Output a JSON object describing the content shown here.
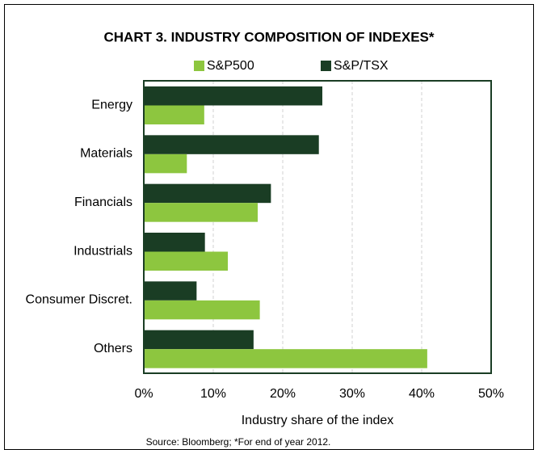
{
  "chart_data": {
    "type": "barh",
    "title": "CHART 3. INDUSTRY COMPOSITION OF INDEXES*",
    "categories": [
      "Energy",
      "Materials",
      "Financials",
      "Industrials",
      "Consumer Discret.",
      "Others"
    ],
    "series": [
      {
        "name": "S&P500",
        "color": "#8dc63f",
        "values": [
          8.7,
          6.2,
          16.4,
          12.1,
          16.7,
          40.8
        ]
      },
      {
        "name": "S&P/TSX",
        "color": "#1a3d24",
        "values": [
          25.7,
          25.2,
          18.3,
          8.8,
          7.6,
          15.8
        ]
      }
    ],
    "xlabel": "Industry share of the index",
    "xlim": [
      0,
      50
    ],
    "xticks": [
      {
        "value": 0,
        "label": "0%"
      },
      {
        "value": 10,
        "label": "10%"
      },
      {
        "value": 20,
        "label": "20%"
      },
      {
        "value": 30,
        "label": "30%"
      },
      {
        "value": 40,
        "label": "40%"
      },
      {
        "value": 50,
        "label": "50%"
      }
    ],
    "grid": true,
    "source": "Source: Bloomberg; *For end of year 2012."
  }
}
